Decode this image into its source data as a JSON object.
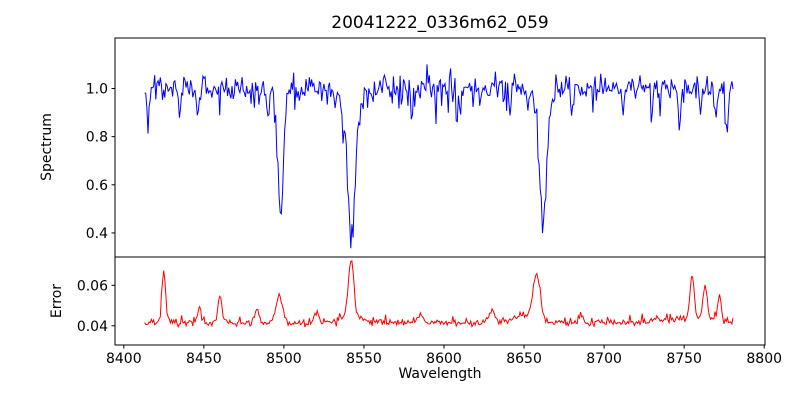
{
  "chart_data": {
    "type": "line",
    "title": "20041222_0336m62_059",
    "xlabel": "Wavelength",
    "xlim": [
      8394.5,
      8800.5
    ],
    "x_start": 8413,
    "x_end": 8781,
    "x_step": 0.7,
    "xticks": {
      "values": [
        8400,
        8450,
        8500,
        8550,
        8600,
        8650,
        8700,
        8750,
        8800
      ],
      "labels": [
        "8400",
        "8450",
        "8500",
        "8550",
        "8600",
        "8650",
        "8700",
        "8750",
        "8800"
      ]
    },
    "panels": [
      {
        "ylabel": "Spectrum",
        "color": "#0000ff",
        "ylim": [
          0.3,
          1.21
        ],
        "yticks": {
          "values": [
            0.4,
            0.6,
            0.8,
            1.0
          ],
          "labels": [
            "0.4",
            "0.6",
            "0.8",
            "1.0"
          ]
        },
        "baseline": 1.0,
        "noise_sigma": 0.025,
        "seed": 1234,
        "spikes": {
          "down_p": 0.05,
          "down_base": 0.02,
          "down_rand": 0.1,
          "up_p": 0.03,
          "up_base": 0.02,
          "up_rand": 0.05
        },
        "features": [
          {
            "c": 8498,
            "a": -0.47,
            "s": 1.6
          },
          {
            "c": 8498,
            "a": -0.06,
            "s": 4
          },
          {
            "c": 8542,
            "a": -0.52,
            "s": 2.2
          },
          {
            "c": 8542,
            "a": -0.11,
            "s": 6
          },
          {
            "c": 8662,
            "a": -0.48,
            "s": 1.9
          },
          {
            "c": 8662,
            "a": -0.1,
            "s": 5
          },
          {
            "c": 8415,
            "a": -0.14,
            "s": 0.7
          },
          {
            "c": 8435,
            "a": -0.12,
            "s": 0.7
          },
          {
            "c": 8446,
            "a": -0.11,
            "s": 0.7
          },
          {
            "c": 8467,
            "a": -0.1,
            "s": 0.7
          },
          {
            "c": 8490,
            "a": -0.13,
            "s": 0.7
          },
          {
            "c": 8580,
            "a": -0.12,
            "s": 0.7
          },
          {
            "c": 8610,
            "a": -0.09,
            "s": 0.7
          },
          {
            "c": 8641,
            "a": -0.11,
            "s": 0.7
          },
          {
            "c": 8680,
            "a": -0.11,
            "s": 0.7
          },
          {
            "c": 8712,
            "a": -0.09,
            "s": 0.7
          },
          {
            "c": 8730,
            "a": -0.11,
            "s": 0.7
          },
          {
            "c": 8747,
            "a": -0.15,
            "s": 0.7
          },
          {
            "c": 8760,
            "a": -0.12,
            "s": 0.7
          },
          {
            "c": 8770,
            "a": -0.13,
            "s": 0.7
          },
          {
            "c": 8777,
            "a": -0.16,
            "s": 0.8
          }
        ]
      },
      {
        "ylabel": "Error",
        "color": "#ff0000",
        "ylim": [
          0.0305,
          0.074
        ],
        "yticks": {
          "values": [
            0.04,
            0.06
          ],
          "labels": [
            "0.04",
            "0.06"
          ]
        },
        "baseline": 0.0415,
        "noise_sigma": 0.0008,
        "seed": 987,
        "spikes": {
          "down_p": 0.02,
          "down_base": 0.0005,
          "down_rand": 0.001,
          "up_p": 0.06,
          "up_base": 0.0008,
          "up_rand": 0.003
        },
        "features": [
          {
            "c": 8425,
            "a": 0.025,
            "s": 1.2
          },
          {
            "c": 8447,
            "a": 0.007,
            "s": 1.2
          },
          {
            "c": 8460,
            "a": 0.014,
            "s": 1.2
          },
          {
            "c": 8483,
            "a": 0.006,
            "s": 1.5
          },
          {
            "c": 8497,
            "a": 0.013,
            "s": 2.0
          },
          {
            "c": 8520,
            "a": 0.005,
            "s": 1.5
          },
          {
            "c": 8542,
            "a": 0.028,
            "s": 1.6
          },
          {
            "c": 8542,
            "a": 0.004,
            "s": 6
          },
          {
            "c": 8585,
            "a": 0.004,
            "s": 1.5
          },
          {
            "c": 8630,
            "a": 0.006,
            "s": 2
          },
          {
            "c": 8658,
            "a": 0.022,
            "s": 2.2
          },
          {
            "c": 8650,
            "a": 0.004,
            "s": 6
          },
          {
            "c": 8685,
            "a": 0.004,
            "s": 1.5
          },
          {
            "c": 8755,
            "a": 0.021,
            "s": 1.3
          },
          {
            "c": 8763,
            "a": 0.017,
            "s": 1.3
          },
          {
            "c": 8772,
            "a": 0.013,
            "s": 1.2
          },
          {
            "c": 8750,
            "a": 0.002,
            "s": 18
          }
        ]
      }
    ]
  }
}
